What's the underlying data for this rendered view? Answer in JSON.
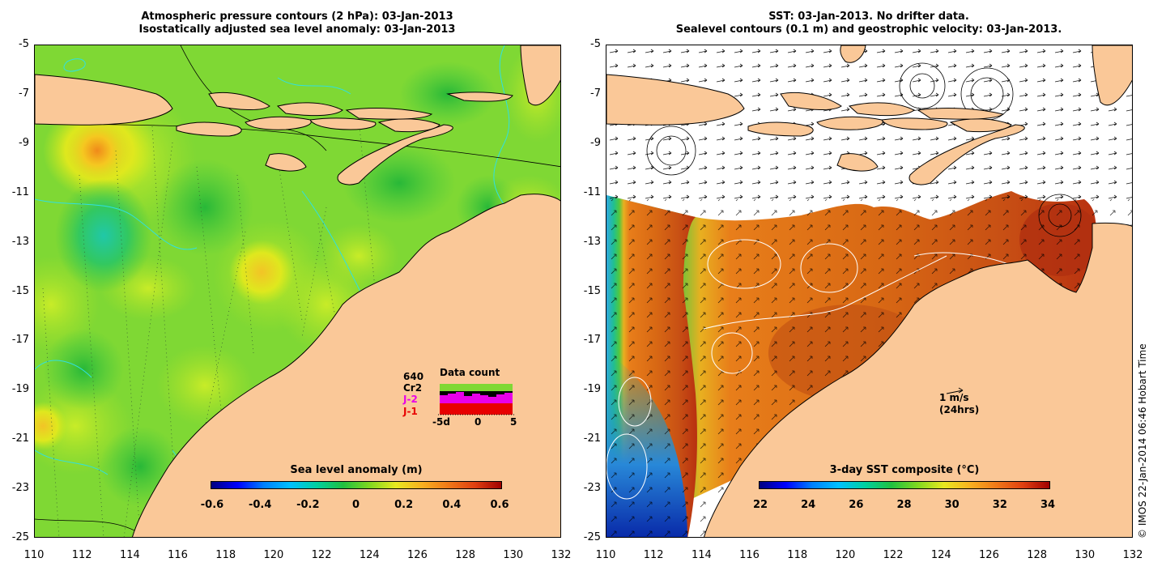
{
  "left_panel": {
    "title_line1": "Atmospheric pressure contours (2 hPa): 03-Jan-2013",
    "title_line2": "Isostatically adjusted sea level anomaly: 03-Jan-2013",
    "colorbar": {
      "title": "Sea level anomaly (m)",
      "labels": [
        "-0.6",
        "-0.4",
        "-0.2",
        "0",
        "0.2",
        "0.4",
        "0.6"
      ],
      "range": [
        -0.6,
        0.6
      ]
    },
    "data_count": {
      "title": "Data count",
      "satellites": [
        "640",
        "Cr2",
        "J-2",
        "J-1"
      ],
      "satellite_colors": [
        "#000000",
        "#000000",
        "#e800e8",
        "#e80000"
      ],
      "axis_labels": [
        "-5d",
        "0",
        "5"
      ]
    }
  },
  "right_panel": {
    "title_line1": "SST: 03-Jan-2013. No drifter data.",
    "title_line2": "Sealevel contours (0.1 m) and geostrophic velocity: 03-Jan-2013.",
    "colorbar": {
      "title": "3-day SST composite (°C)",
      "labels": [
        "22",
        "24",
        "26",
        "28",
        "30",
        "32",
        "34"
      ],
      "range": [
        22,
        34
      ]
    },
    "velocity_scale": {
      "line1": "1 m/s",
      "line2": "(24hrs)"
    }
  },
  "axes": {
    "lat_labels": [
      "-5",
      "-7",
      "-9",
      "-11",
      "-13",
      "-15",
      "-17",
      "-19",
      "-21",
      "-23",
      "-25"
    ],
    "lon_labels": [
      "110",
      "112",
      "114",
      "116",
      "118",
      "120",
      "122",
      "124",
      "126",
      "128",
      "130",
      "132"
    ],
    "lat_range": [
      -25,
      -5
    ],
    "lon_range": [
      110,
      132
    ]
  },
  "credit": "© IMOS 22-Jan-2014 06:46 Hobart Time",
  "colors": {
    "land": "#fac898",
    "sla_base": "#7ed832",
    "ocean_nodata": "#ffffff"
  }
}
